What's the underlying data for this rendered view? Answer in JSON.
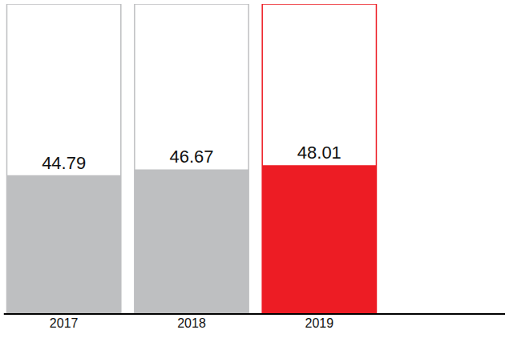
{
  "chart_data": {
    "type": "bar",
    "categories": [
      "2017",
      "2018",
      "2019"
    ],
    "values": [
      44.79,
      46.67,
      48.01
    ],
    "colors": [
      "#bebfc1",
      "#bebfc1",
      "#ed1c24"
    ],
    "ylim": [
      0,
      100
    ],
    "grid": false,
    "data_labels": true,
    "tick_labels": "x"
  }
}
